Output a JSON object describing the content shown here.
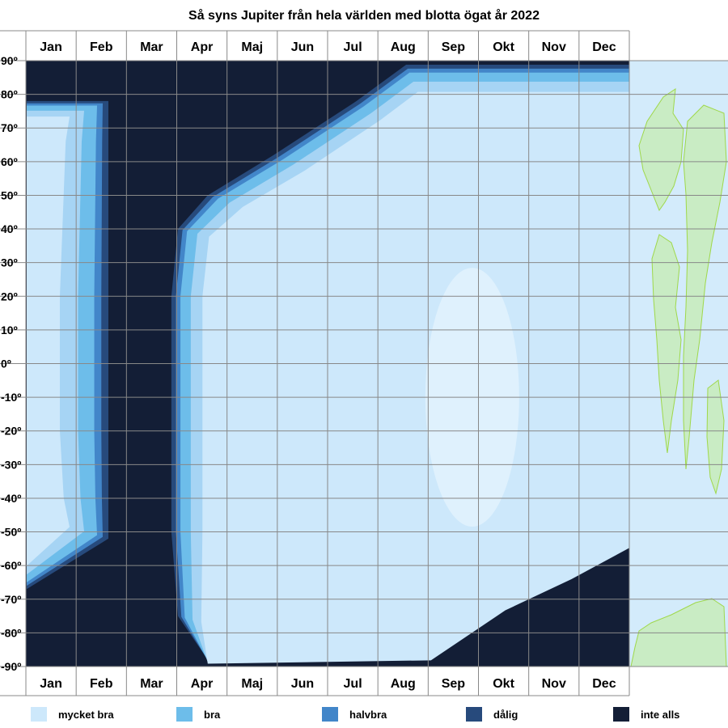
{
  "chart_data": {
    "type": "heatmap",
    "title": "Så syns Jupiter från hela världen med blotta ögat år 2022",
    "x_tick_labels": [
      "Jan",
      "Feb",
      "Mar",
      "Apr",
      "Maj",
      "Jun",
      "Jul",
      "Aug",
      "Sep",
      "Okt",
      "Nov",
      "Dec"
    ],
    "y_tick_labels": [
      "90º",
      "80º",
      "70º",
      "60º",
      "50º",
      "40º",
      "30º",
      "20º",
      "10º",
      "0º",
      "-10º",
      "-20º",
      "-30º",
      "-40º",
      "-50º",
      "-60º",
      "-70º",
      "-80º",
      "-90º"
    ],
    "y_range": [
      -90,
      90
    ],
    "x_range_days": [
      0,
      365
    ],
    "grid": true,
    "legend_position": "bottom",
    "legend": [
      {
        "label": "mycket bra",
        "color": "#cde8fb"
      },
      {
        "label": "bra",
        "color": "#6dbdea"
      },
      {
        "label": "halvbra",
        "color": "#4286c9"
      },
      {
        "label": "dålig",
        "color": "#274a7c"
      },
      {
        "label": "inte alls",
        "color": "#131e36"
      }
    ],
    "colors": {
      "mycket_bra": "#cde8fb",
      "mycket_bra_core": "#dff1fd",
      "bra": "#6dbdea",
      "bra_light": "#a6d4f4",
      "halvbra": "#4286c9",
      "dalig": "#274a7c",
      "inte_alls": "#131e36",
      "map_land": "#c9ecc4",
      "map_outline": "#9fd84a",
      "map_sea": "#d3ebfb",
      "grid": "#888888"
    },
    "visibility_boundaries_by_latitude": [
      {
        "lat": 90,
        "visible_from_day": null,
        "visible_to_day": null
      },
      {
        "lat": 80,
        "visible_from_day": 215,
        "visible_to_day": 355
      },
      {
        "lat": 70,
        "visible_from_day": 180,
        "visible_to_day": 365
      },
      {
        "lat": 60,
        "visible_from_day": 140,
        "visible_to_day": 365
      },
      {
        "lat": 50,
        "visible_from_day": 110,
        "visible_to_day": 365
      },
      {
        "lat": 40,
        "visible_from_day": 95,
        "visible_to_day": 365
      },
      {
        "lat": 0,
        "visible_from_day": 90,
        "visible_to_day": 365
      },
      {
        "lat": -40,
        "visible_from_day": 90,
        "visible_to_day": 365
      },
      {
        "lat": -60,
        "visible_from_day": 100,
        "visible_to_day": 320
      },
      {
        "lat": -80,
        "visible_from_day": 120,
        "visible_to_day": 240
      },
      {
        "lat": -90,
        "visible_from_day": null,
        "visible_to_day": null
      }
    ]
  }
}
